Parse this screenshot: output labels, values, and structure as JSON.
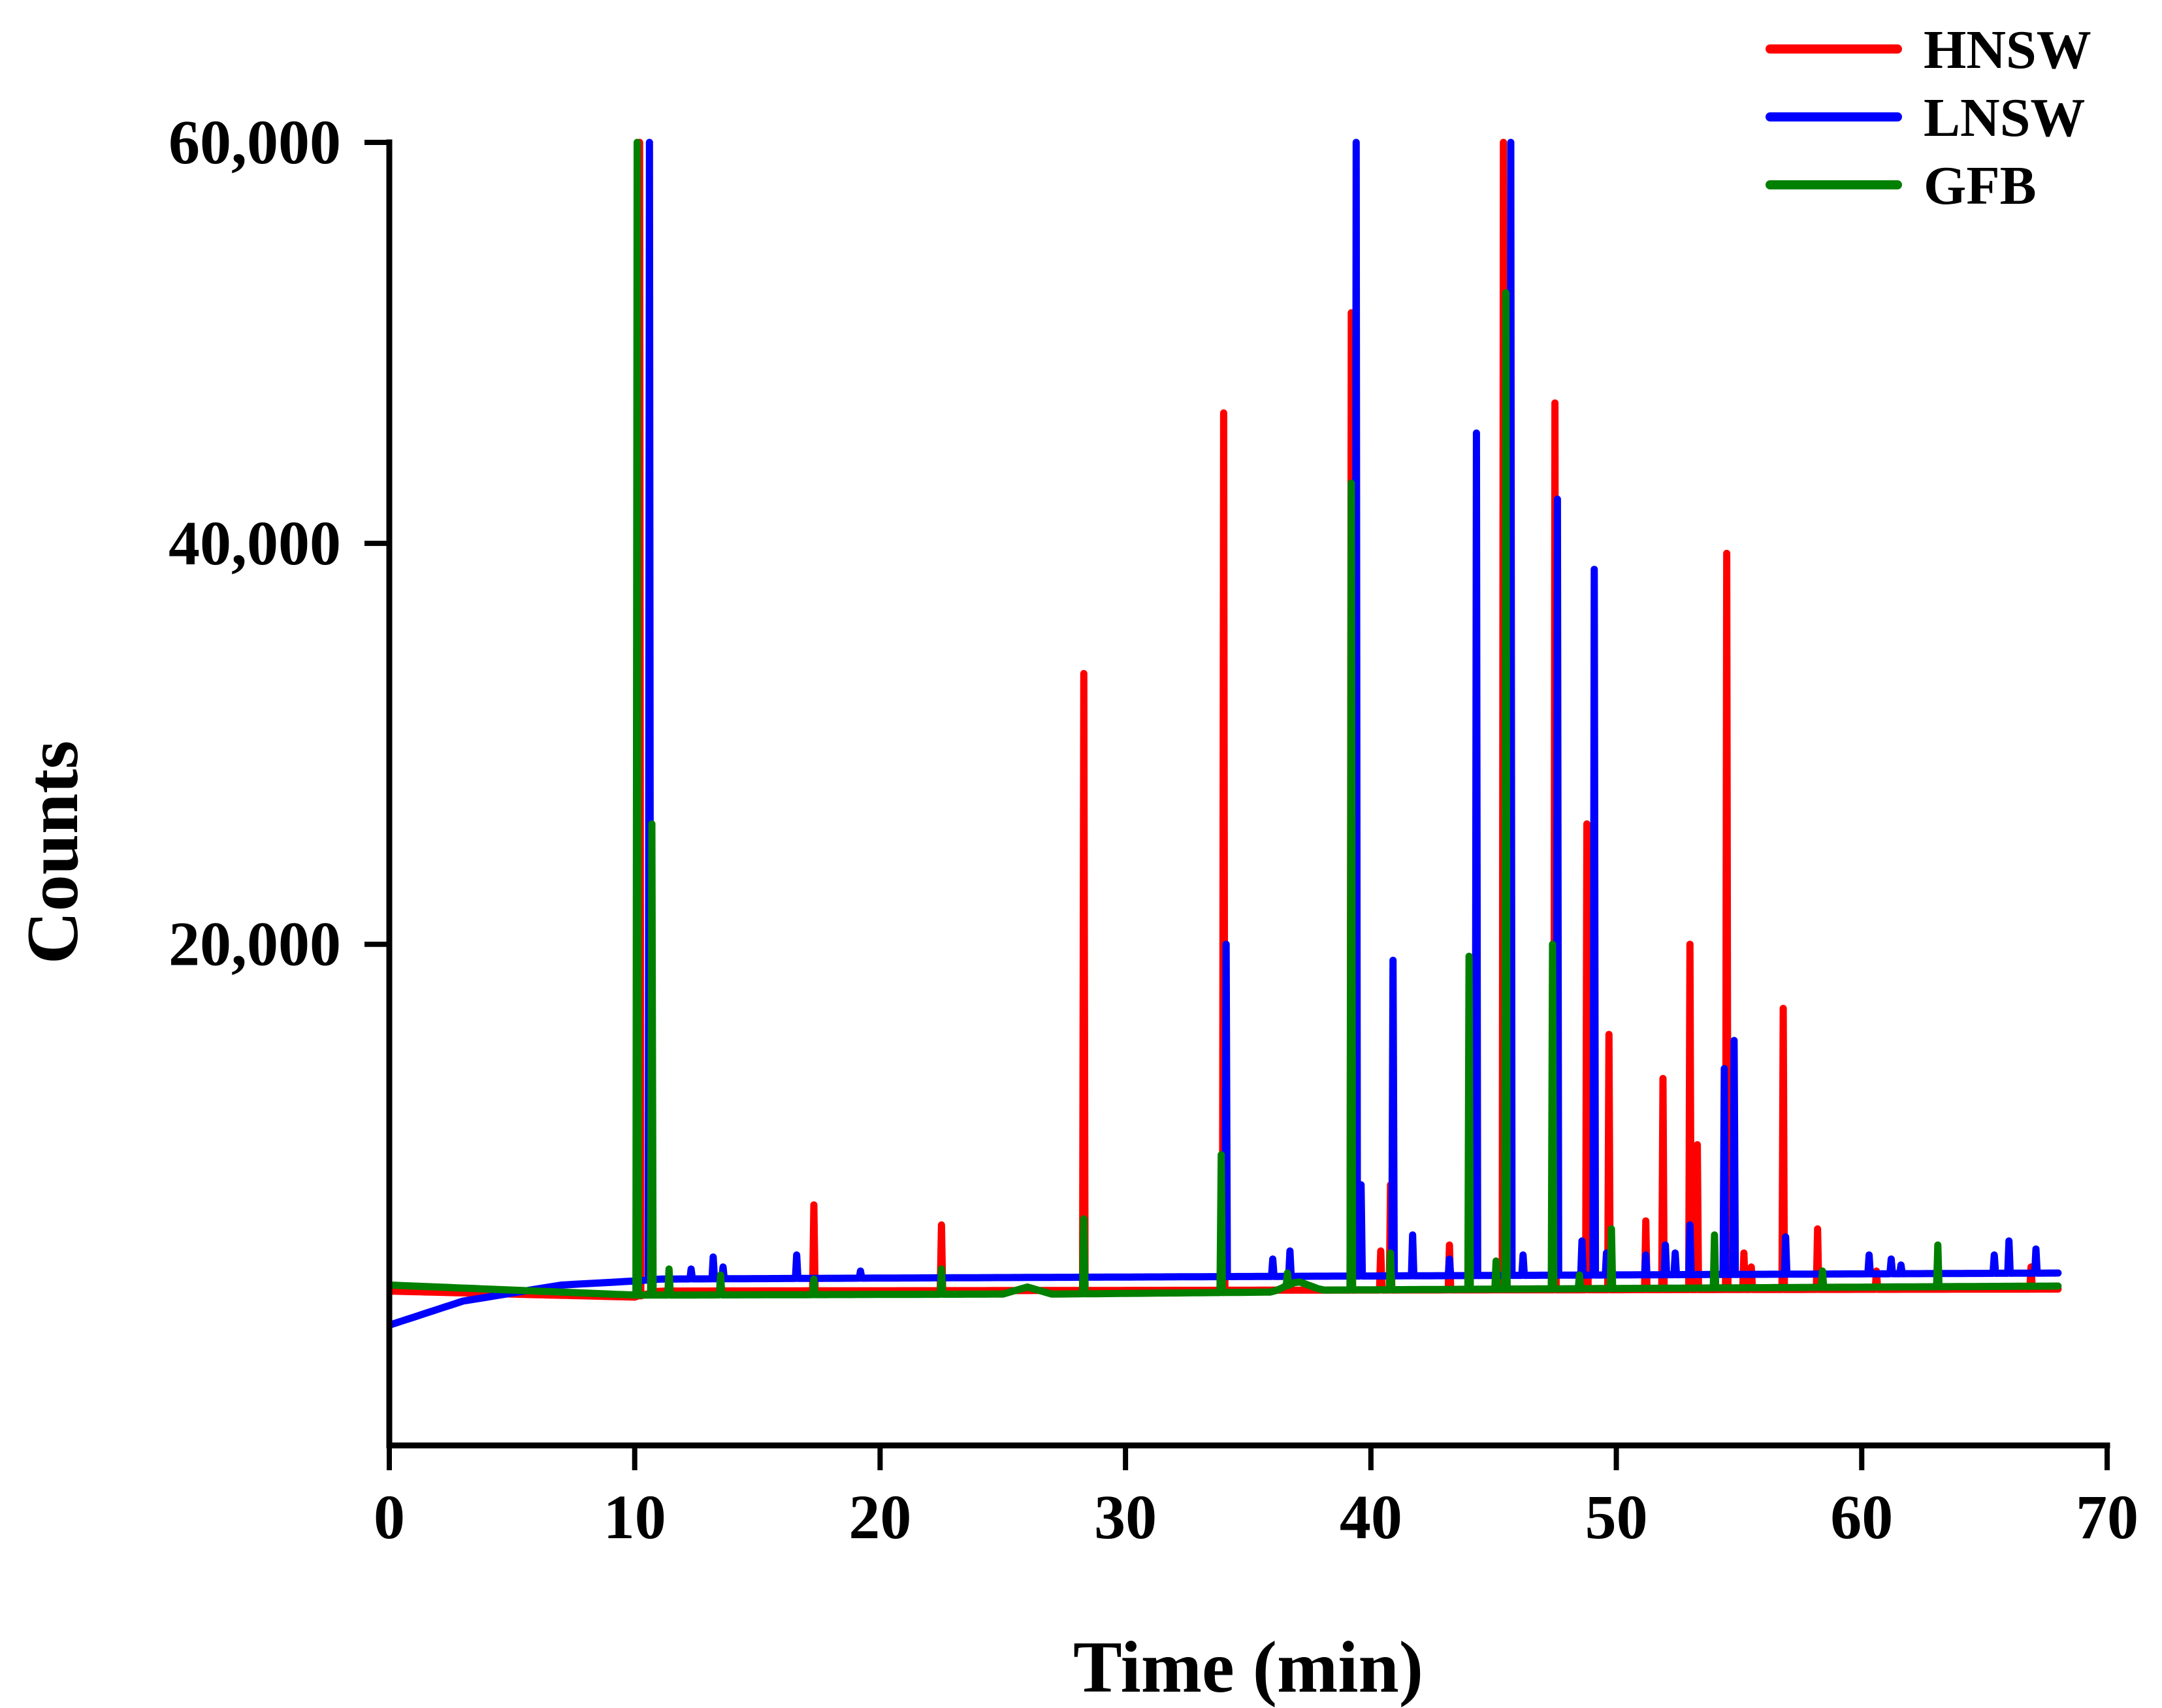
{
  "chart_data": {
    "type": "line",
    "title": "",
    "xlabel": "Time (min)",
    "ylabel": "Counts",
    "xlim": [
      0,
      70
    ],
    "ylim": [
      -5000,
      60000
    ],
    "xticks": [
      0,
      10,
      20,
      30,
      40,
      50,
      60,
      70
    ],
    "xtick_labels": [
      "0",
      "10",
      "20",
      "30",
      "40",
      "50",
      "60",
      "70"
    ],
    "yticks": [
      20000,
      40000,
      60000
    ],
    "ytick_labels": [
      "20,000",
      "40,000",
      "60,000"
    ],
    "legend_position": "top-right",
    "colors": {
      "HNSW": "#ff0000",
      "LNSW": "#0000ff",
      "GFB": "#008000",
      "axis": "#000000"
    },
    "series": [
      {
        "name": "HNSW",
        "baseline": [
          [
            0,
            2700
          ],
          [
            10,
            2400
          ],
          [
            11,
            2700
          ],
          [
            68,
            2800
          ]
        ],
        "peaks": [
          [
            10.2,
            60000
          ],
          [
            17.3,
            7000
          ],
          [
            22.5,
            6000
          ],
          [
            28.3,
            33500
          ],
          [
            34,
            46500
          ],
          [
            39.2,
            51500
          ],
          [
            40.4,
            4700
          ],
          [
            40.8,
            8000
          ],
          [
            43.2,
            5000
          ],
          [
            45.4,
            60000
          ],
          [
            47.5,
            47000
          ],
          [
            48.8,
            26000
          ],
          [
            49.7,
            15500
          ],
          [
            51.2,
            6200
          ],
          [
            51.9,
            13300
          ],
          [
            53,
            20000
          ],
          [
            53.3,
            10000
          ],
          [
            54.5,
            39500
          ],
          [
            55.2,
            4600
          ],
          [
            55.5,
            3900
          ],
          [
            56.8,
            16800
          ],
          [
            58.2,
            5800
          ],
          [
            60.6,
            3700
          ],
          [
            66.9,
            3900
          ]
        ]
      },
      {
        "name": "LNSW",
        "baseline": [
          [
            0,
            1000
          ],
          [
            3,
            2200
          ],
          [
            7,
            3000
          ],
          [
            10,
            3200
          ],
          [
            11,
            3300
          ],
          [
            68,
            3600
          ]
        ],
        "peaks": [
          [
            10.6,
            60000
          ],
          [
            12.3,
            3800
          ],
          [
            13.2,
            4400
          ],
          [
            13.6,
            3900
          ],
          [
            16.6,
            4500
          ],
          [
            19.2,
            3700
          ],
          [
            33.9,
            4300
          ],
          [
            34.1,
            20000
          ],
          [
            36,
            4300
          ],
          [
            36.7,
            4700
          ],
          [
            39.4,
            60000
          ],
          [
            39.6,
            8000
          ],
          [
            40.9,
            19200
          ],
          [
            41.7,
            5500
          ],
          [
            43.2,
            4300
          ],
          [
            44.3,
            45500
          ],
          [
            45.7,
            60000
          ],
          [
            46.2,
            4500
          ],
          [
            47.6,
            42200
          ],
          [
            48.6,
            5200
          ],
          [
            49.1,
            38700
          ],
          [
            49.6,
            4600
          ],
          [
            51.2,
            4500
          ],
          [
            52,
            5000
          ],
          [
            52.4,
            4600
          ],
          [
            53,
            6000
          ],
          [
            54.4,
            13800
          ],
          [
            54.8,
            15200
          ],
          [
            56.9,
            5400
          ],
          [
            60.3,
            4500
          ],
          [
            61.2,
            4300
          ],
          [
            61.6,
            4000
          ],
          [
            65.4,
            4500
          ],
          [
            66,
            5200
          ],
          [
            67.1,
            4800
          ]
        ]
      },
      {
        "name": "GFB",
        "baseline": [
          [
            0,
            3000
          ],
          [
            10,
            2500
          ],
          [
            11,
            2500
          ],
          [
            25,
            2550
          ],
          [
            26,
            2900
          ],
          [
            27,
            2550
          ],
          [
            36,
            2650
          ],
          [
            37,
            3200
          ],
          [
            38,
            2750
          ],
          [
            68,
            2950
          ]
        ],
        "peaks": [
          [
            10.1,
            60000
          ],
          [
            10.7,
            26000
          ],
          [
            11.4,
            3800
          ],
          [
            13.5,
            3500
          ],
          [
            17.3,
            3300
          ],
          [
            22.5,
            3800
          ],
          [
            28.3,
            6300
          ],
          [
            33.9,
            9500
          ],
          [
            36.6,
            3600
          ],
          [
            39.2,
            43000
          ],
          [
            40.8,
            4600
          ],
          [
            44,
            19400
          ],
          [
            45.1,
            4200
          ],
          [
            45.5,
            52500
          ],
          [
            47.4,
            20000
          ],
          [
            48.5,
            3500
          ],
          [
            49.8,
            5800
          ],
          [
            54,
            5500
          ],
          [
            58.4,
            3700
          ],
          [
            63.1,
            5000
          ]
        ]
      }
    ]
  }
}
